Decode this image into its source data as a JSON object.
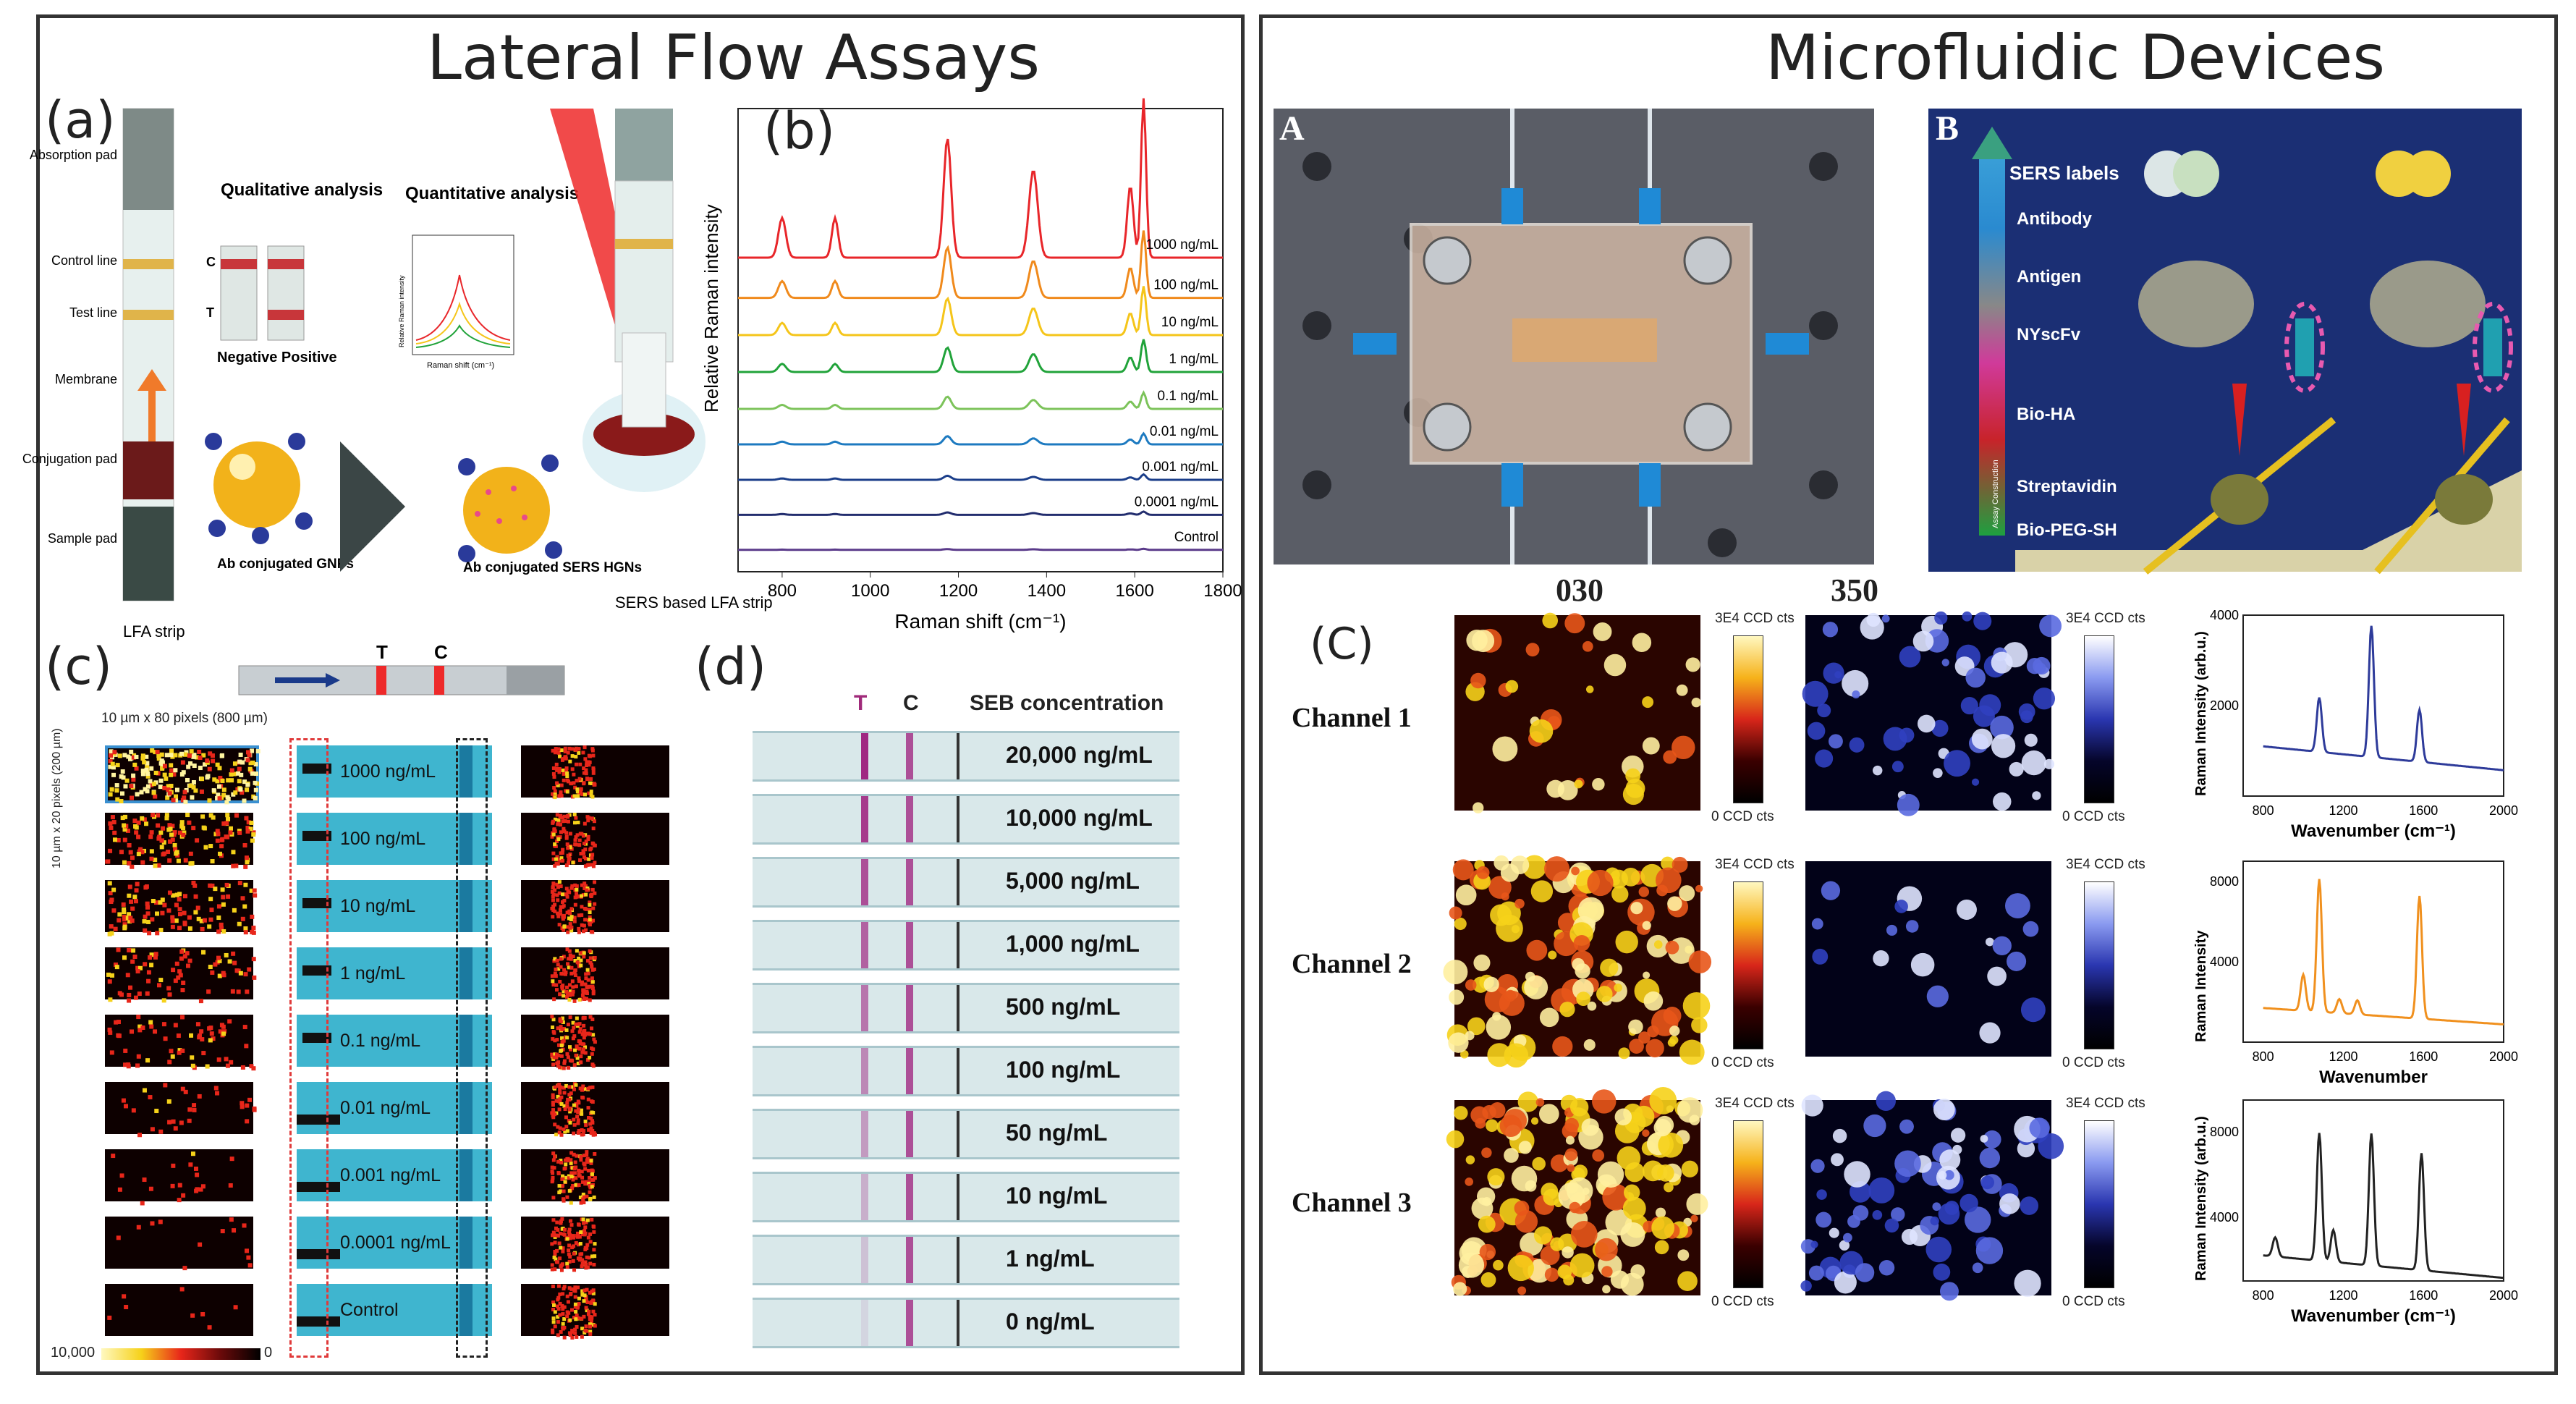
{
  "left_title": "Lateral Flow Assays",
  "right_title": "Microfluidic Devices",
  "panel_labels": {
    "a": "(a)",
    "b": "(b)",
    "c": "(c)",
    "d": "(d)",
    "A": "A",
    "B": "B",
    "C": "(C)"
  },
  "panel_a": {
    "strip_parts": [
      "Absorption pad",
      "Control line",
      "Test line",
      "Membrane",
      "Conjugation pad",
      "Sample pad"
    ],
    "strip_letters": [
      "C",
      "T"
    ],
    "qualitative": "Qualitative analysis",
    "neg_pos": "Negative Positive",
    "quantitative": "Quantitative analysis",
    "inset_ylabel": "Relative Raman intensity",
    "inset_xlabel": "Raman shift (cm⁻¹)",
    "gnp_label": "Ab conjugated GNPs",
    "hgn_label": "Ab conjugated SERS HGNs",
    "lfa_strip": "LFA strip",
    "sers_strip": "SERS based LFA strip"
  },
  "panel_c": {
    "dims_top": "10 µm x 80 pixels (800 µm)",
    "dims_side": "10 µm x 20 pixels (200 µm)",
    "concentrations": [
      "1000 ng/mL",
      "100 ng/mL",
      "10 ng/mL",
      "1 ng/mL",
      "0.1 ng/mL",
      "0.01 ng/mL",
      "0.001 ng/mL",
      "0.0001 ng/mL",
      "Control"
    ],
    "scale_max": "10,000",
    "scale_min": "0",
    "strip_letters": [
      "T",
      "C"
    ]
  },
  "panel_d": {
    "header_T": "T",
    "header_C": "C",
    "header": "SEB concentration",
    "concentrations": [
      "20,000 ng/mL",
      "10,000 ng/mL",
      "5,000 ng/mL",
      "1,000 ng/mL",
      "500 ng/mL",
      "100 ng/mL",
      "50 ng/mL",
      "10 ng/mL",
      "1 ng/mL",
      "0 ng/mL"
    ]
  },
  "panel_B": {
    "labels": [
      "SERS labels",
      "Antibody",
      "Antigen",
      "NYscFv",
      "Bio-HA",
      "Streptavidin",
      "Bio-PEG-SH"
    ],
    "axis": "Assay Construction"
  },
  "panel_C": {
    "col_headers": [
      "030",
      "350"
    ],
    "channels": [
      "Channel 1",
      "Channel 2",
      "Channel 3"
    ],
    "cbar_top": "3E4 CCD cts",
    "cbar_bottom": "0 CCD cts"
  },
  "colors": {
    "spectra": [
      "#e8262a",
      "#f08a1c",
      "#f5c51a",
      "#21a33a",
      "#7cc35a",
      "#1d7ac0",
      "#1b3e8a",
      "#222d6e",
      "#5a3a8a",
      "#333333"
    ],
    "channel_spectra": [
      "#2e3b9a",
      "#f0901e",
      "#222222"
    ],
    "microfluidic_bg": "#1b2f74"
  },
  "chart_data": [
    {
      "type": "line",
      "title": "(b)",
      "xlabel": "Raman shift (cm⁻¹)",
      "ylabel": "Relative Raman intensity",
      "xlim": [
        700,
        1800
      ],
      "xticks": [
        800,
        1000,
        1200,
        1400,
        1600,
        1800
      ],
      "peaks": [
        800,
        920,
        1175,
        1370,
        1590,
        1620
      ],
      "series": [
        {
          "name": "1000 ng/mL",
          "offset": 9,
          "scale": 1.0
        },
        {
          "name": "100 ng/mL",
          "offset": 8,
          "scale": 0.62
        },
        {
          "name": "10 ng/mL",
          "offset": 7,
          "scale": 0.45
        },
        {
          "name": "1 ng/mL",
          "offset": 6,
          "scale": 0.3
        },
        {
          "name": "0.1 ng/mL",
          "offset": 5,
          "scale": 0.15
        },
        {
          "name": "0.01 ng/mL",
          "offset": 4,
          "scale": 0.1
        },
        {
          "name": "0.001 ng/mL",
          "offset": 3,
          "scale": 0.05
        },
        {
          "name": "0.0001 ng/mL",
          "offset": 2,
          "scale": 0.03
        },
        {
          "name": "Control",
          "offset": 1,
          "scale": 0.01
        }
      ]
    },
    {
      "type": "line",
      "title": "Channel 1",
      "xlabel": "Wavenumber (cm⁻¹)",
      "ylabel": "Raman Intensity (arb.u.)",
      "xlim": [
        700,
        2000
      ],
      "ylim": [
        0,
        4000
      ],
      "xticks": [
        800,
        1200,
        1600,
        2000
      ],
      "yticks": [
        2000,
        4000
      ],
      "baseline": 1100,
      "peaks": [
        [
          1080,
          1200
        ],
        [
          1340,
          2900
        ],
        [
          1580,
          1150
        ]
      ]
    },
    {
      "type": "line",
      "title": "Channel 2",
      "xlabel": "Wavenumber",
      "ylabel": "Raman Intensity",
      "xlim": [
        700,
        2000
      ],
      "ylim": [
        0,
        9000
      ],
      "xticks": [
        800,
        1200,
        1600,
        2000
      ],
      "yticks": [
        4000,
        8000
      ],
      "baseline": 1700,
      "peaks": [
        [
          1000,
          1800
        ],
        [
          1080,
          6600
        ],
        [
          1180,
          700
        ],
        [
          1270,
          700
        ],
        [
          1580,
          6100
        ]
      ]
    },
    {
      "type": "line",
      "title": "Channel 3",
      "xlabel": "Wavenumber (cm⁻¹)",
      "ylabel": "Raman Intensity (arb.u.)",
      "xlim": [
        700,
        2000
      ],
      "ylim": [
        1000,
        9500
      ],
      "xticks": [
        800,
        1200,
        1600,
        2000
      ],
      "yticks": [
        4000,
        8000
      ],
      "baseline": 2200,
      "peaks": [
        [
          860,
          900
        ],
        [
          1080,
          6000
        ],
        [
          1150,
          1500
        ],
        [
          1340,
          6200
        ],
        [
          1590,
          5500
        ]
      ]
    }
  ]
}
